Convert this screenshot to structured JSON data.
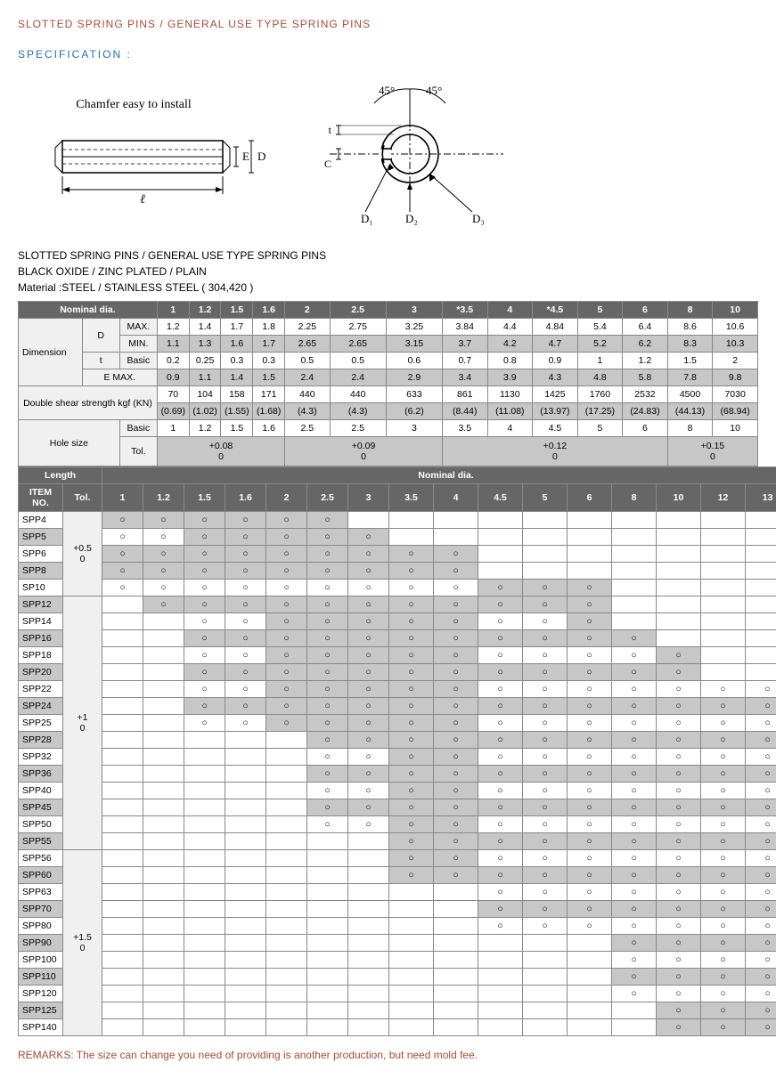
{
  "title": "SLOTTED SPRING PINS / GENERAL USE TYPE SPRING PINS",
  "spec_label": "SPECIFICATION :",
  "diagram_labels": {
    "chamfer": "Chamfer easy to install",
    "E": "E",
    "D": "D",
    "L": "ℓ",
    "ang1": "45°",
    "ang2": "45°",
    "t": "t",
    "C": "C",
    "D1": "D₁",
    "D2": "D₂",
    "D3": "D₃"
  },
  "subtitle": {
    "line1": "SLOTTED SPRING PINS / GENERAL USE TYPE SPRING PINS",
    "line2": "BLACK OXIDE / ZINC PLATED / PLAIN",
    "line3": "Material :STEEL / STAINLESS STEEL ( 304,420 )"
  },
  "colors": {
    "hdr_dark": "#666666",
    "cell_shade": "#c7c7c7",
    "border": "#888888"
  },
  "spec_table": {
    "nominal_hdr": "Nominal dia.",
    "dia_cols": [
      "1",
      "1.2",
      "1.5",
      "1.6",
      "2",
      "2.5",
      "3",
      "*3.5",
      "4",
      "*4.5",
      "5",
      "6",
      "8",
      "10"
    ],
    "dim_label": "Dimension",
    "D": "D",
    "t": "t",
    "max_label": "MAX.",
    "min_label": "MIN.",
    "basic_label": "Basic",
    "emax_label": "E MAX.",
    "max_vals": [
      "1.2",
      "1.4",
      "1.7",
      "1.8",
      "2.25",
      "2.75",
      "3.25",
      "3.84",
      "4.4",
      "4.84",
      "5.4",
      "6.4",
      "8.6",
      "10.6"
    ],
    "min_vals": [
      "1.1",
      "1.3",
      "1.6",
      "1.7",
      "2.65",
      "2.65",
      "3.15",
      "3.7",
      "4.2",
      "4.7",
      "5.2",
      "6.2",
      "8.3",
      "10.3"
    ],
    "t_vals": [
      "0.2",
      "0.25",
      "0.3",
      "0.3",
      "0.5",
      "0.5",
      "0.6",
      "0.7",
      "0.8",
      "0.9",
      "1",
      "1.2",
      "1.5",
      "2"
    ],
    "emax_vals": [
      "0.9",
      "1.1",
      "1.4",
      "1.5",
      "2.4",
      "2.4",
      "2.9",
      "3.4",
      "3.9",
      "4.3",
      "4.8",
      "5.8",
      "7.8",
      "9.8"
    ],
    "shear_label": "Double shear strength kgf (KN)",
    "shear_top": [
      "70",
      "104",
      "158",
      "171",
      "440",
      "440",
      "633",
      "861",
      "1130",
      "1425",
      "1760",
      "2532",
      "4500",
      "7030"
    ],
    "shear_bot": [
      "(0.69)",
      "(1.02)",
      "(1.55)",
      "(1.68)",
      "(4.3)",
      "(4.3)",
      "(6.2)",
      "(8.44)",
      "(11.08)",
      "(13.97)",
      "(17.25)",
      "(24.83)",
      "(44.13)",
      "(68.94)"
    ],
    "hole_label": "Hole size",
    "hole_basic": [
      "1",
      "1.2",
      "1.5",
      "1.6",
      "2.5",
      "2.5",
      "3",
      "3.5",
      "4",
      "4.5",
      "5",
      "6",
      "8",
      "10"
    ],
    "tol_label": "Tol.",
    "tol_groups": [
      {
        "span": 4,
        "top": "+0.08",
        "bot": "0"
      },
      {
        "span": 3,
        "top": "+0.09",
        "bot": "0"
      },
      {
        "span": 5,
        "top": "+0.12",
        "bot": "0"
      },
      {
        "span": 2,
        "top": "+0.15",
        "bot": "0"
      }
    ]
  },
  "length_table": {
    "length_hdr": "Length",
    "nominal_hdr": "Nominal dia.",
    "itemno_hdr": "ITEM NO.",
    "tol_hdr": "Tol.",
    "dia_cols": [
      "1",
      "1.2",
      "1.5",
      "1.6",
      "2",
      "2.5",
      "3",
      "3.5",
      "4",
      "4.5",
      "5",
      "6",
      "8",
      "10",
      "12",
      "13"
    ],
    "tol_groups": [
      {
        "label_top": "+0.5",
        "label_bot": "0",
        "count": 5
      },
      {
        "label_top": "+1",
        "label_bot": "0",
        "count": 15
      },
      {
        "label_top": "+1.5",
        "label_bot": "0",
        "count": 11
      }
    ],
    "rows": [
      {
        "item": "SPP4",
        "shade": false,
        "cells": [
          "○",
          "○",
          "○",
          "○",
          "○",
          "○",
          "",
          "",
          "",
          "",
          "",
          "",
          "",
          "",
          "",
          ""
        ]
      },
      {
        "item": "SPP5",
        "shade": true,
        "cells": [
          "○",
          "○",
          "○",
          "○",
          "○",
          "○",
          "○",
          "",
          "",
          "",
          "",
          "",
          "",
          "",
          "",
          ""
        ]
      },
      {
        "item": "SPP6",
        "shade": false,
        "cells": [
          "○",
          "○",
          "○",
          "○",
          "○",
          "○",
          "○",
          "○",
          "○",
          "",
          "",
          "",
          "",
          "",
          "",
          ""
        ]
      },
      {
        "item": "SPP8",
        "shade": true,
        "cells": [
          "○",
          "○",
          "○",
          "○",
          "○",
          "○",
          "○",
          "○",
          "○",
          "",
          "",
          "",
          "",
          "",
          "",
          ""
        ]
      },
      {
        "item": "SP10",
        "shade": false,
        "cells": [
          "○",
          "○",
          "○",
          "○",
          "○",
          "○",
          "○",
          "○",
          "○",
          "○",
          "○",
          "○",
          "",
          "",
          "",
          ""
        ]
      },
      {
        "item": "SPP12",
        "shade": true,
        "cells": [
          "",
          "○",
          "○",
          "○",
          "○",
          "○",
          "○",
          "○",
          "○",
          "○",
          "○",
          "○",
          "",
          "",
          "",
          ""
        ]
      },
      {
        "item": "SPP14",
        "shade": false,
        "cells": [
          "",
          "",
          "○",
          "○",
          "○",
          "○",
          "○",
          "○",
          "○",
          "○",
          "○",
          "○",
          "",
          "",
          "",
          ""
        ]
      },
      {
        "item": "SPP16",
        "shade": true,
        "cells": [
          "",
          "",
          "○",
          "○",
          "○",
          "○",
          "○",
          "○",
          "○",
          "○",
          "○",
          "○",
          "○",
          "",
          "",
          ""
        ]
      },
      {
        "item": "SPP18",
        "shade": false,
        "cells": [
          "",
          "",
          "○",
          "○",
          "○",
          "○",
          "○",
          "○",
          "○",
          "○",
          "○",
          "○",
          "○",
          "○",
          "",
          ""
        ]
      },
      {
        "item": "SPP20",
        "shade": true,
        "cells": [
          "",
          "",
          "○",
          "○",
          "○",
          "○",
          "○",
          "○",
          "○",
          "○",
          "○",
          "○",
          "○",
          "○",
          "",
          ""
        ]
      },
      {
        "item": "SPP22",
        "shade": false,
        "cells": [
          "",
          "",
          "○",
          "○",
          "○",
          "○",
          "○",
          "○",
          "○",
          "○",
          "○",
          "○",
          "○",
          "○",
          "○",
          "○"
        ]
      },
      {
        "item": "SPP24",
        "shade": true,
        "cells": [
          "",
          "",
          "○",
          "○",
          "○",
          "○",
          "○",
          "○",
          "○",
          "○",
          "○",
          "○",
          "○",
          "○",
          "○",
          "○"
        ]
      },
      {
        "item": "SPP25",
        "shade": false,
        "cells": [
          "",
          "",
          "○",
          "○",
          "○",
          "○",
          "○",
          "○",
          "○",
          "○",
          "○",
          "○",
          "○",
          "○",
          "○",
          "○"
        ]
      },
      {
        "item": "SPP28",
        "shade": true,
        "cells": [
          "",
          "",
          "",
          "",
          "",
          "○",
          "○",
          "○",
          "○",
          "○",
          "○",
          "○",
          "○",
          "○",
          "○",
          "○"
        ]
      },
      {
        "item": "SPP32",
        "shade": false,
        "cells": [
          "",
          "",
          "",
          "",
          "",
          "○",
          "○",
          "○",
          "○",
          "○",
          "○",
          "○",
          "○",
          "○",
          "○",
          "○"
        ]
      },
      {
        "item": "SPP36",
        "shade": true,
        "cells": [
          "",
          "",
          "",
          "",
          "",
          "○",
          "○",
          "○",
          "○",
          "○",
          "○",
          "○",
          "○",
          "○",
          "○",
          "○"
        ]
      },
      {
        "item": "SPP40",
        "shade": false,
        "cells": [
          "",
          "",
          "",
          "",
          "",
          "○",
          "○",
          "○",
          "○",
          "○",
          "○",
          "○",
          "○",
          "○",
          "○",
          "○"
        ]
      },
      {
        "item": "SPP45",
        "shade": true,
        "cells": [
          "",
          "",
          "",
          "",
          "",
          "○",
          "○",
          "○",
          "○",
          "○",
          "○",
          "○",
          "○",
          "○",
          "○",
          "○"
        ]
      },
      {
        "item": "SPP50",
        "shade": false,
        "cells": [
          "",
          "",
          "",
          "",
          "",
          "○",
          "○",
          "○",
          "○",
          "○",
          "○",
          "○",
          "○",
          "○",
          "○",
          "○"
        ]
      },
      {
        "item": "SPP55",
        "shade": true,
        "cells": [
          "",
          "",
          "",
          "",
          "",
          "",
          "",
          "○",
          "○",
          "○",
          "○",
          "○",
          "○",
          "○",
          "○",
          "○"
        ]
      },
      {
        "item": "SPP56",
        "shade": false,
        "cells": [
          "",
          "",
          "",
          "",
          "",
          "",
          "",
          "○",
          "○",
          "○",
          "○",
          "○",
          "○",
          "○",
          "○",
          "○"
        ]
      },
      {
        "item": "SPP60",
        "shade": true,
        "cells": [
          "",
          "",
          "",
          "",
          "",
          "",
          "",
          "○",
          "○",
          "○",
          "○",
          "○",
          "○",
          "○",
          "○",
          "○"
        ]
      },
      {
        "item": "SPP63",
        "shade": false,
        "cells": [
          "",
          "",
          "",
          "",
          "",
          "",
          "",
          "",
          "",
          "○",
          "○",
          "○",
          "○",
          "○",
          "○",
          "○"
        ]
      },
      {
        "item": "SPP70",
        "shade": true,
        "cells": [
          "",
          "",
          "",
          "",
          "",
          "",
          "",
          "",
          "",
          "○",
          "○",
          "○",
          "○",
          "○",
          "○",
          "○"
        ]
      },
      {
        "item": "SPP80",
        "shade": false,
        "cells": [
          "",
          "",
          "",
          "",
          "",
          "",
          "",
          "",
          "",
          "○",
          "○",
          "○",
          "○",
          "○",
          "○",
          "○"
        ]
      },
      {
        "item": "SPP90",
        "shade": true,
        "cells": [
          "",
          "",
          "",
          "",
          "",
          "",
          "",
          "",
          "",
          "",
          "",
          "",
          "○",
          "○",
          "○",
          "○"
        ]
      },
      {
        "item": "SPP100",
        "shade": false,
        "cells": [
          "",
          "",
          "",
          "",
          "",
          "",
          "",
          "",
          "",
          "",
          "",
          "",
          "○",
          "○",
          "○",
          "○"
        ]
      },
      {
        "item": "SPP110",
        "shade": true,
        "cells": [
          "",
          "",
          "",
          "",
          "",
          "",
          "",
          "",
          "",
          "",
          "",
          "",
          "○",
          "○",
          "○",
          "○"
        ]
      },
      {
        "item": "SPP120",
        "shade": false,
        "cells": [
          "",
          "",
          "",
          "",
          "",
          "",
          "",
          "",
          "",
          "",
          "",
          "",
          "○",
          "○",
          "○",
          "○"
        ]
      },
      {
        "item": "SPP125",
        "shade": true,
        "cells": [
          "",
          "",
          "",
          "",
          "",
          "",
          "",
          "",
          "",
          "",
          "",
          "",
          "",
          "○",
          "○",
          "○"
        ]
      },
      {
        "item": "SPP140",
        "shade": false,
        "cells": [
          "",
          "",
          "",
          "",
          "",
          "",
          "",
          "",
          "",
          "",
          "",
          "",
          "",
          "○",
          "○",
          "○"
        ]
      }
    ],
    "shaded_cols_per_row": [
      [
        0,
        1,
        2,
        3,
        4,
        5
      ],
      [
        2,
        3,
        4,
        5,
        6
      ],
      [
        0,
        1,
        2,
        3,
        4,
        5,
        6,
        7,
        8
      ],
      [
        0,
        1,
        2,
        3,
        4,
        5,
        6,
        7,
        8
      ],
      [
        9,
        10,
        11
      ],
      [
        1,
        2,
        3,
        4,
        5,
        6,
        7,
        8,
        9,
        10,
        11
      ],
      [
        4,
        5,
        6,
        7,
        8,
        11
      ],
      [
        2,
        3,
        4,
        5,
        6,
        7,
        8,
        9,
        10,
        11,
        12
      ],
      [
        4,
        5,
        6,
        7,
        8,
        13
      ],
      [
        2,
        3,
        4,
        5,
        6,
        7,
        8,
        9,
        10,
        11,
        12,
        13
      ],
      [
        4,
        5,
        6,
        7,
        8
      ],
      [
        2,
        3,
        4,
        5,
        6,
        7,
        8,
        9,
        10,
        11,
        12,
        13,
        14,
        15
      ],
      [
        4,
        5,
        6,
        7,
        8
      ],
      [
        5,
        6,
        7,
        8,
        9,
        10,
        11,
        12,
        13,
        14,
        15
      ],
      [
        7,
        8
      ],
      [
        5,
        6,
        7,
        8,
        9,
        10,
        11,
        12,
        13,
        14,
        15
      ],
      [
        7,
        8
      ],
      [
        5,
        6,
        7,
        8,
        9,
        10,
        11,
        12,
        13,
        14,
        15
      ],
      [
        7,
        8
      ],
      [
        7,
        8,
        9,
        10,
        11,
        12,
        13,
        14,
        15
      ],
      [
        7,
        8
      ],
      [
        7,
        8,
        9,
        10,
        11,
        12,
        13,
        14,
        15
      ],
      [],
      [
        9,
        10,
        11,
        12,
        13,
        14,
        15
      ],
      [],
      [
        12,
        13,
        14,
        15
      ],
      [],
      [
        12,
        13,
        14,
        15
      ],
      [],
      [
        13,
        14,
        15
      ],
      [
        13,
        14,
        15
      ]
    ]
  },
  "remarks": "REMARKS: The size can change you need of providing is another production, but need mold fee."
}
